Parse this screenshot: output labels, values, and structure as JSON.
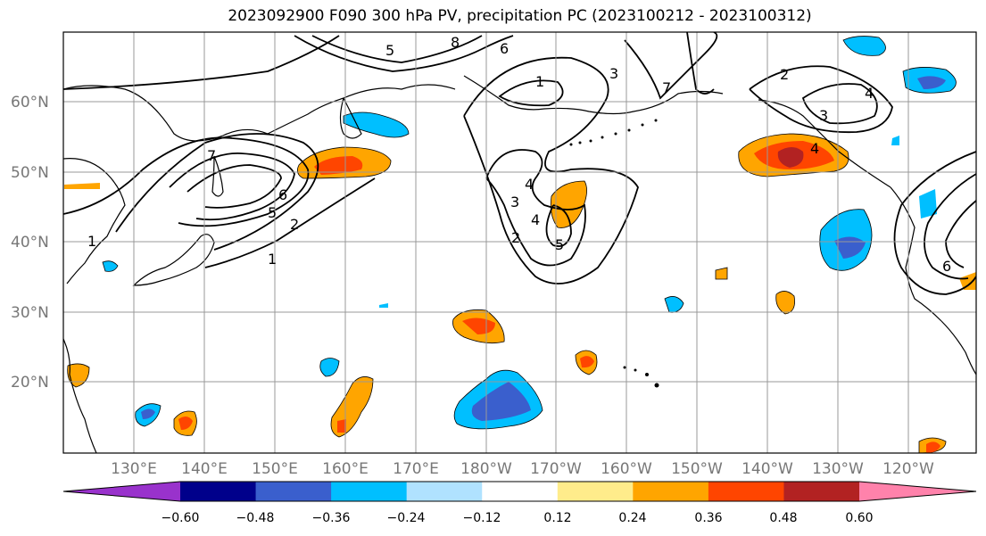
{
  "title": "2023092900 F090 300 hPa PV, precipitation PC (2023100212 - 2023100312)",
  "map": {
    "lat_labels": [
      "60°N",
      "50°N",
      "40°N",
      "30°N",
      "20°N"
    ],
    "lon_labels": [
      "130°E",
      "140°E",
      "150°E",
      "160°E",
      "170°E",
      "180°W",
      "170°W",
      "160°W",
      "150°W",
      "140°W",
      "130°W",
      "120°W"
    ],
    "contour_labels": [
      "1",
      "2",
      "3",
      "4",
      "5",
      "6",
      "7",
      "8"
    ],
    "colors": {
      "grid": "#999999",
      "coast": "#000000",
      "neg_strong": "#3a5fcd",
      "neg_mid": "#00bfff",
      "neg_weak": "#b0e2ff",
      "pos_weak": "#ffec8b",
      "pos_mid": "#ffa500",
      "pos_strong": "#ff4500",
      "pos_max": "#b22222"
    }
  },
  "colorbar": {
    "colors": [
      "#9932cc",
      "#00008b",
      "#3a5fcd",
      "#00bfff",
      "#b0e2ff",
      "#ffffff",
      "#ffec8b",
      "#ffa500",
      "#ff4500",
      "#b22222",
      "#ff82ab"
    ],
    "labels": [
      "−0.60",
      "−0.48",
      "−0.36",
      "−0.24",
      "−0.12",
      "0.12",
      "0.24",
      "0.36",
      "0.48",
      "0.60"
    ]
  }
}
